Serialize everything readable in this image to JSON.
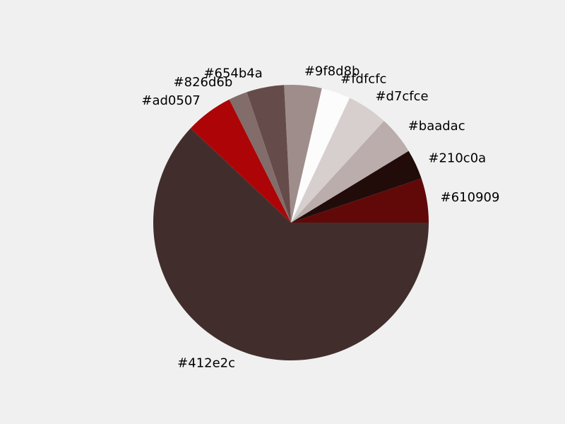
{
  "chart_data": {
    "type": "pie",
    "start_angle_deg": 0,
    "direction": "counterclockwise",
    "slices": [
      {
        "label": "#610909",
        "value": 5.2,
        "color": "#610909"
      },
      {
        "label": "#210c0a",
        "value": 3.5,
        "color": "#210c0a"
      },
      {
        "label": "#baadac",
        "value": 4.5,
        "color": "#baadac"
      },
      {
        "label": "#d7cfce",
        "value": 4.8,
        "color": "#d7cfce"
      },
      {
        "label": "#fdfcfc",
        "value": 3.4,
        "color": "#fdfcfc"
      },
      {
        "label": "#9f8d8b",
        "value": 4.4,
        "color": "#9f8d8b"
      },
      {
        "label": "#654b4a",
        "value": 4.4,
        "color": "#654b4a"
      },
      {
        "label": "#826d6b",
        "value": 2.2,
        "color": "#826d6b"
      },
      {
        "label": "#ad0507",
        "value": 5.6,
        "color": "#ad0507"
      },
      {
        "label": "#412e2c",
        "value": 62.0,
        "color": "#412e2c"
      }
    ]
  }
}
